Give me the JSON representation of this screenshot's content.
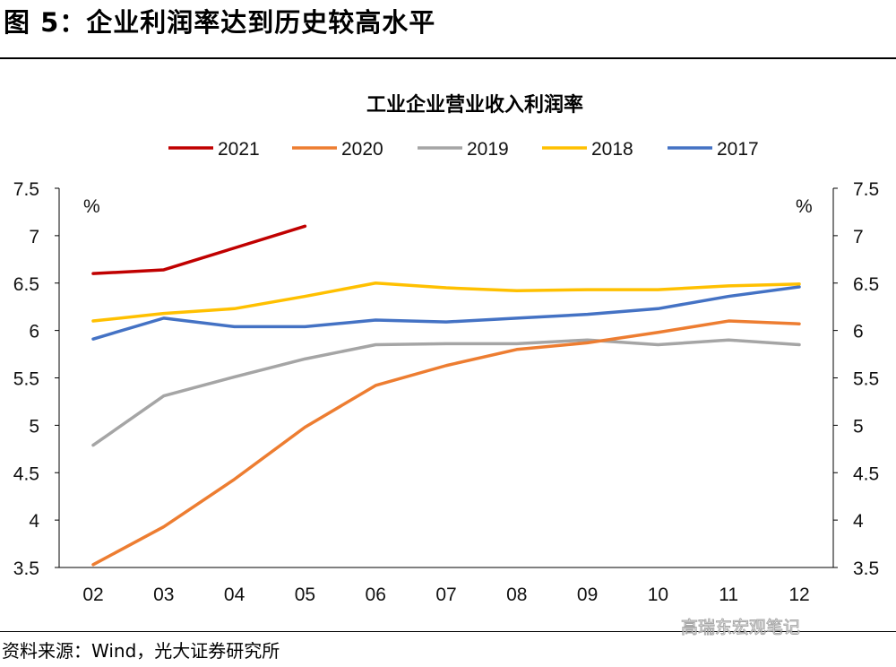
{
  "figure_title": "图 5：企业利润率达到历史较高水平",
  "source": "资料来源：Wind，光大证券研究所",
  "watermark": "高瑞东宏观笔记",
  "chart_data": {
    "type": "line",
    "title": "工业企业营业收入利润率",
    "xlabel": "",
    "ylabel": "%",
    "ylabel_right": "%",
    "categories": [
      "02",
      "03",
      "04",
      "05",
      "06",
      "07",
      "08",
      "09",
      "10",
      "11",
      "12"
    ],
    "ylim": [
      3.5,
      7.5
    ],
    "yticks": [
      "3.5",
      "4",
      "4.5",
      "5",
      "5.5",
      "6",
      "6.5",
      "7",
      "7.5"
    ],
    "grid": false,
    "legend_position": "top",
    "series": [
      {
        "name": "2021",
        "color": "#C00000",
        "values": [
          6.6,
          6.64,
          6.87,
          7.1,
          null,
          null,
          null,
          null,
          null,
          null,
          null
        ]
      },
      {
        "name": "2020",
        "color": "#ED7D31",
        "values": [
          3.53,
          3.93,
          4.43,
          4.98,
          5.42,
          5.63,
          5.8,
          5.87,
          5.98,
          6.1,
          6.07
        ]
      },
      {
        "name": "2019",
        "color": "#A5A5A5",
        "values": [
          4.79,
          5.31,
          5.51,
          5.7,
          5.85,
          5.86,
          5.86,
          5.9,
          5.85,
          5.9,
          5.85
        ]
      },
      {
        "name": "2018",
        "color": "#FFC000",
        "values": [
          6.1,
          6.18,
          6.23,
          6.36,
          6.5,
          6.45,
          6.42,
          6.43,
          6.43,
          6.47,
          6.49
        ]
      },
      {
        "name": "2017",
        "color": "#4472C4",
        "values": [
          5.91,
          6.13,
          6.04,
          6.04,
          6.11,
          6.09,
          6.13,
          6.17,
          6.23,
          6.36,
          6.46
        ]
      }
    ]
  }
}
